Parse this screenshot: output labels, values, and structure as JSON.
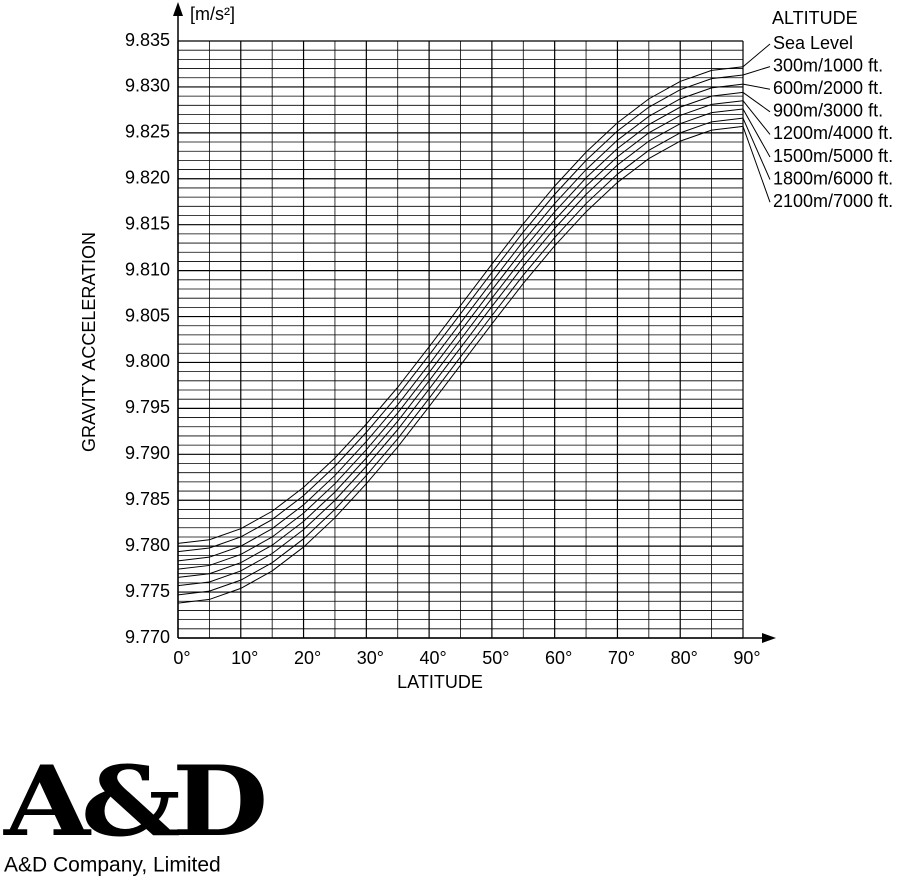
{
  "chart_data": {
    "type": "line",
    "y_unit": "[m/s²]",
    "ylabel": "GRAVITY ACCELERATION",
    "xlabel": "LATITUDE",
    "legend_title": "ALTITUDE",
    "legend_position": "right",
    "grid": true,
    "x": [
      0,
      5,
      10,
      15,
      20,
      25,
      30,
      35,
      40,
      45,
      50,
      55,
      60,
      65,
      70,
      75,
      80,
      85,
      90
    ],
    "xlim": [
      0,
      90
    ],
    "xticks": [
      {
        "value": 0,
        "label": "0°"
      },
      {
        "value": 10,
        "label": "10°"
      },
      {
        "value": 20,
        "label": "20°"
      },
      {
        "value": 30,
        "label": "30°"
      },
      {
        "value": 40,
        "label": "40°"
      },
      {
        "value": 50,
        "label": "50°"
      },
      {
        "value": 60,
        "label": "60°"
      },
      {
        "value": 70,
        "label": "70°"
      },
      {
        "value": 80,
        "label": "80°"
      },
      {
        "value": 90,
        "label": "90°"
      }
    ],
    "xminorticks": [
      5,
      15,
      25,
      35,
      45,
      55,
      65,
      75,
      85
    ],
    "ylim": [
      9.77,
      9.835
    ],
    "yticks": [
      {
        "value": 9.77,
        "label": "9.770"
      },
      9.775,
      {
        "value": 9.78,
        "label": "9.780"
      },
      9.785,
      {
        "value": 9.79,
        "label": "9.790"
      },
      9.795,
      {
        "value": 9.8,
        "label": "9.800"
      },
      9.805,
      {
        "value": 9.81,
        "label": "9.810"
      },
      9.815,
      {
        "value": 9.82,
        "label": "9.820"
      },
      9.825,
      {
        "value": 9.83,
        "label": "9.830"
      },
      9.835
    ],
    "yminorticks": [
      9.771,
      9.772,
      9.773,
      9.774,
      9.776,
      9.777,
      9.778,
      9.779,
      9.781,
      9.782,
      9.783,
      9.784,
      9.786,
      9.787,
      9.788,
      9.789,
      9.791,
      9.792,
      9.793,
      9.794,
      9.796,
      9.797,
      9.798,
      9.799,
      9.801,
      9.802,
      9.803,
      9.804,
      9.806,
      9.807,
      9.808,
      9.809,
      9.811,
      9.812,
      9.813,
      9.814,
      9.816,
      9.817,
      9.818,
      9.819,
      9.821,
      9.822,
      9.823,
      9.824,
      9.826,
      9.827,
      9.828,
      9.829,
      9.831,
      9.832,
      9.833,
      9.834
    ],
    "series": [
      {
        "name": "Sea Level",
        "color": "#000000",
        "values": [
          9.7803,
          9.7807,
          9.7819,
          9.7838,
          9.7864,
          9.7896,
          9.7933,
          9.7973,
          9.8017,
          9.8062,
          9.8107,
          9.8151,
          9.8192,
          9.8229,
          9.8261,
          9.8287,
          9.8306,
          9.8318,
          9.8322
        ]
      },
      {
        "name": "300m/1000 ft.",
        "color": "#000000",
        "values": [
          9.7794,
          9.7798,
          9.781,
          9.7829,
          9.7855,
          9.7887,
          9.7924,
          9.7964,
          9.8008,
          9.8053,
          9.8098,
          9.8142,
          9.8183,
          9.822,
          9.8252,
          9.8278,
          9.8297,
          9.8309,
          9.8313
        ]
      },
      {
        "name": "600m/2000 ft.",
        "color": "#000000",
        "values": [
          9.7784,
          9.7788,
          9.78,
          9.7819,
          9.7845,
          9.7877,
          9.7914,
          9.7954,
          9.7998,
          9.8043,
          9.8088,
          9.8132,
          9.8173,
          9.821,
          9.8242,
          9.8268,
          9.8287,
          9.8299,
          9.8303
        ]
      },
      {
        "name": "900m/3000 ft.",
        "color": "#000000",
        "values": [
          9.7775,
          9.7779,
          9.7791,
          9.781,
          9.7836,
          9.7868,
          9.7905,
          9.7945,
          9.7989,
          9.8034,
          9.8079,
          9.8123,
          9.8164,
          9.8201,
          9.8233,
          9.8259,
          9.8278,
          9.829,
          9.8294
        ]
      },
      {
        "name": "1200m/4000 ft.",
        "color": "#000000",
        "values": [
          9.7766,
          9.777,
          9.7782,
          9.7801,
          9.7827,
          9.7859,
          9.7896,
          9.7936,
          9.798,
          9.8025,
          9.807,
          9.8114,
          9.8155,
          9.8192,
          9.8224,
          9.825,
          9.8269,
          9.8281,
          9.8285
        ]
      },
      {
        "name": "1500m/5000 ft.",
        "color": "#000000",
        "values": [
          9.7757,
          9.7761,
          9.7773,
          9.7792,
          9.7818,
          9.785,
          9.7887,
          9.7927,
          9.7971,
          9.8016,
          9.8061,
          9.8105,
          9.8146,
          9.8183,
          9.8215,
          9.8241,
          9.826,
          9.8272,
          9.8276
        ]
      },
      {
        "name": "1800m/6000 ft.",
        "color": "#000000",
        "values": [
          9.7747,
          9.7751,
          9.7763,
          9.7782,
          9.7808,
          9.784,
          9.7877,
          9.7917,
          9.7961,
          9.8006,
          9.8051,
          9.8095,
          9.8136,
          9.8173,
          9.8205,
          9.8231,
          9.825,
          9.8262,
          9.8266
        ]
      },
      {
        "name": "2100m/7000 ft.",
        "color": "#000000",
        "values": [
          9.7738,
          9.7742,
          9.7754,
          9.7773,
          9.7799,
          9.7831,
          9.7868,
          9.7908,
          9.7952,
          9.7997,
          9.8042,
          9.8086,
          9.8127,
          9.8164,
          9.8196,
          9.8222,
          9.8241,
          9.8253,
          9.8257
        ]
      }
    ]
  },
  "footer": {
    "logo": "A&D",
    "company": "A&D Company, Limited"
  }
}
